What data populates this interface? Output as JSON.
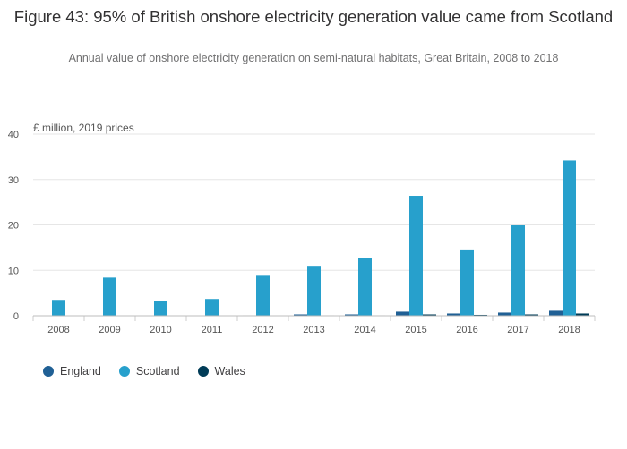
{
  "header": {
    "title": "Figure 43: 95% of British onshore electricity generation value came from Scotland",
    "subtitle": "Annual value of onshore electricity generation on semi-natural habitats, Great Britain, 2008 to 2018"
  },
  "chart_data": {
    "type": "bar",
    "title": "Figure 43: 95% of British onshore electricity generation value came from Scotland",
    "subtitle": "Annual value of onshore electricity generation on semi-natural habitats, Great Britain, 2008 to 2018",
    "ylabel": "£ million, 2019 prices",
    "xlabel": "",
    "ylim": [
      0,
      40
    ],
    "yticks": [
      0,
      10,
      20,
      30,
      40
    ],
    "grid": true,
    "legend_position": "bottom-left",
    "categories": [
      "2008",
      "2009",
      "2010",
      "2011",
      "2012",
      "2013",
      "2014",
      "2015",
      "2016",
      "2017",
      "2018"
    ],
    "series": [
      {
        "name": "England",
        "color": "#206095",
        "values": [
          0,
          0,
          0,
          0,
          0.1,
          0.3,
          0.3,
          0.9,
          0.5,
          0.7,
          1.1
        ]
      },
      {
        "name": "Scotland",
        "color": "#27a0cc",
        "values": [
          3.5,
          8.4,
          3.3,
          3.7,
          8.8,
          11.0,
          12.8,
          26.4,
          14.6,
          19.9,
          34.2
        ]
      },
      {
        "name": "Wales",
        "color": "#003c57",
        "values": [
          0,
          0,
          0,
          0,
          0,
          0.1,
          0.1,
          0.3,
          0.2,
          0.3,
          0.5
        ]
      }
    ]
  }
}
